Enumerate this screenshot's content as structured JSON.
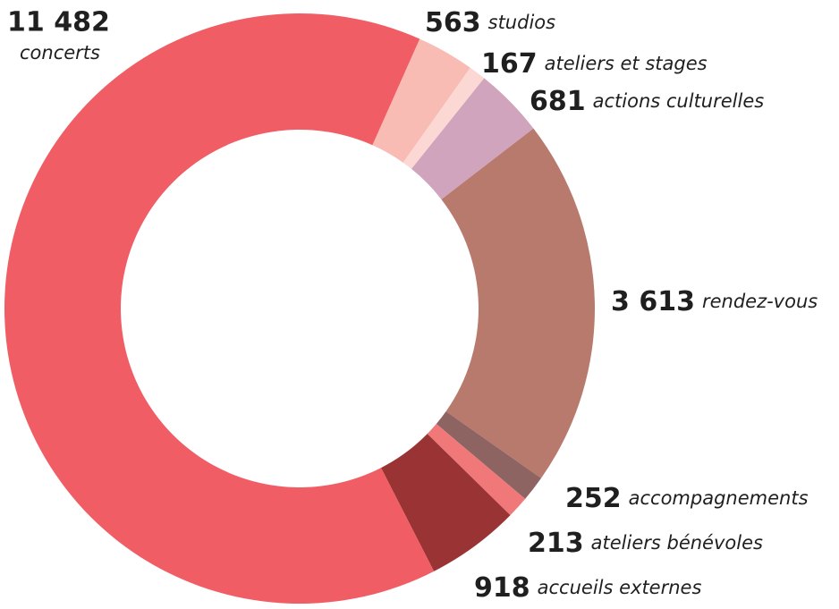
{
  "chart_data": {
    "type": "donut",
    "categories": [
      "studios",
      "ateliers et stages",
      "actions culturelles",
      "rendez-vous",
      "accompagnements",
      "ateliers bénévoles",
      "accueils externes",
      "concerts"
    ],
    "values": [
      563,
      167,
      681,
      3613,
      252,
      213,
      918,
      11482
    ],
    "value_labels": [
      "563",
      "167",
      "681",
      "3 613",
      "252",
      "213",
      "918",
      "11 482"
    ],
    "colors": [
      "#f8bcb4",
      "#fcd8d4",
      "#d0a4bc",
      "#b97a6e",
      "#8e6462",
      "#f07878",
      "#9a3434",
      "#f05d64"
    ]
  }
}
